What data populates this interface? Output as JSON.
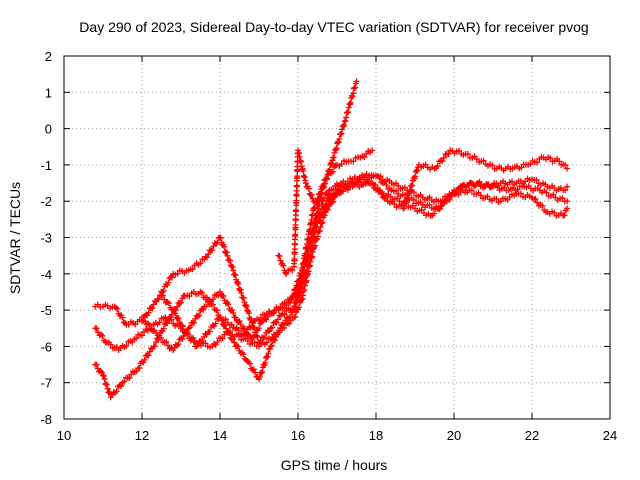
{
  "chart_data": {
    "type": "scatter",
    "title": "Day 290 of 2023, Sidereal Day-to-day VTEC variation (SDTVAR) for receiver pvog",
    "xlabel": "GPS time / hours",
    "ylabel": "SDTVAR / TECUs",
    "xlim": [
      10,
      24
    ],
    "ylim": [
      -8,
      2
    ],
    "xticks": [
      10,
      12,
      14,
      16,
      18,
      20,
      22,
      24
    ],
    "yticks": [
      -8,
      -7,
      -6,
      -5,
      -4,
      -3,
      -2,
      -1,
      0,
      1,
      2
    ],
    "grid": true,
    "marker": "+",
    "color": "#ff0000",
    "series": [
      {
        "x": [
          10.8,
          11.0,
          11.3,
          11.6,
          12.0,
          12.4,
          12.8,
          13.2,
          13.6,
          14.0,
          14.3,
          14.7,
          15.0,
          15.3,
          15.6,
          15.9,
          16.2,
          16.5,
          16.8,
          17.1,
          17.5,
          17.9,
          18.3,
          18.7,
          19.1,
          19.5,
          19.9,
          20.3,
          20.7,
          21.1,
          21.5,
          21.9,
          22.3,
          22.7,
          22.9
        ],
        "y": [
          -4.9,
          -4.9,
          -4.9,
          -5.4,
          -5.3,
          -4.7,
          -4.0,
          -3.9,
          -3.6,
          -3.0,
          -3.8,
          -5.0,
          -5.9,
          -5.5,
          -5.1,
          -4.9,
          -3.6,
          -2.4,
          -1.9,
          -1.6,
          -1.5,
          -1.5,
          -2.0,
          -2.2,
          -1.0,
          -1.1,
          -0.6,
          -0.7,
          -0.9,
          -1.1,
          -1.1,
          -1.0,
          -0.8,
          -0.9,
          -1.1
        ]
      },
      {
        "x": [
          10.8,
          11.0,
          11.2,
          11.5,
          11.9,
          12.3,
          12.7,
          13.1,
          13.5,
          13.9,
          14.3,
          14.7,
          15.0,
          15.3,
          15.6,
          15.9,
          16.2,
          16.5,
          16.8,
          17.1,
          17.4,
          17.8,
          18.2,
          18.6,
          19.0,
          19.4,
          19.8,
          20.2,
          20.6,
          21.0,
          21.4,
          21.8,
          22.2,
          22.6,
          22.9
        ],
        "y": [
          -6.5,
          -6.8,
          -7.4,
          -7.0,
          -6.6,
          -6.0,
          -5.2,
          -4.6,
          -4.5,
          -5.0,
          -5.8,
          -6.4,
          -6.9,
          -6.0,
          -5.4,
          -5.0,
          -4.0,
          -2.6,
          -2.0,
          -1.7,
          -1.6,
          -1.5,
          -1.8,
          -2.0,
          -2.2,
          -2.4,
          -2.0,
          -1.6,
          -1.5,
          -1.6,
          -1.7,
          -1.6,
          -1.7,
          -1.9,
          -2.0
        ]
      },
      {
        "x": [
          10.8,
          11.1,
          11.4,
          11.8,
          12.2,
          12.6,
          13.0,
          13.4,
          13.8,
          14.2,
          14.6,
          15.0,
          15.3,
          15.6,
          15.9,
          16.1,
          16.4,
          16.7,
          17.0,
          17.3,
          17.6,
          18.0,
          18.4,
          18.8,
          19.2,
          19.6,
          20.0,
          20.4,
          20.8,
          21.2,
          21.6,
          22.0,
          22.4,
          22.8,
          22.9
        ],
        "y": [
          -5.5,
          -5.9,
          -6.1,
          -5.8,
          -5.5,
          -5.2,
          -5.5,
          -5.9,
          -6.0,
          -5.6,
          -5.8,
          -6.0,
          -5.8,
          -5.5,
          -5.2,
          -4.7,
          -3.3,
          -2.3,
          -1.8,
          -1.6,
          -1.4,
          -1.3,
          -1.5,
          -1.7,
          -1.9,
          -2.0,
          -1.8,
          -1.7,
          -1.9,
          -2.0,
          -1.8,
          -1.9,
          -2.3,
          -2.4,
          -2.2
        ]
      },
      {
        "x": [
          12.0,
          12.4,
          12.8,
          13.2,
          13.6,
          14.0,
          14.4,
          14.8,
          15.1,
          15.4,
          15.7,
          16.0,
          16.3,
          16.6,
          16.9,
          17.2,
          17.5
        ],
        "y": [
          -5.2,
          -5.7,
          -6.1,
          -5.5,
          -4.9,
          -4.5,
          -5.2,
          -5.8,
          -5.3,
          -5.0,
          -4.8,
          -4.5,
          -3.2,
          -1.8,
          -0.8,
          0.2,
          1.3
        ]
      },
      {
        "x": [
          12.5,
          12.8,
          13.1,
          13.4,
          13.7,
          14.0,
          14.3,
          14.6,
          14.9,
          15.2,
          15.5,
          15.8,
          16.1,
          16.4,
          16.7,
          17.0,
          17.3,
          17.6,
          17.9
        ],
        "y": [
          -4.6,
          -5.0,
          -5.6,
          -6.0,
          -5.6,
          -5.2,
          -5.4,
          -5.7,
          -5.3,
          -5.1,
          -5.0,
          -4.8,
          -3.9,
          -2.2,
          -1.4,
          -1.0,
          -0.9,
          -0.8,
          -0.6
        ]
      },
      {
        "x": [
          15.5,
          15.7,
          15.9,
          16.0,
          16.2,
          16.4,
          16.6,
          16.8,
          17.1,
          17.4,
          17.7,
          18.0,
          18.4,
          18.8,
          19.2,
          19.6,
          20.0,
          20.4,
          20.8,
          21.2,
          21.6,
          22.0,
          22.4,
          22.8,
          22.9
        ],
        "y": [
          -3.5,
          -4.0,
          -3.8,
          -0.6,
          -1.5,
          -2.0,
          -2.0,
          -1.7,
          -1.5,
          -1.4,
          -1.3,
          -1.3,
          -1.7,
          -1.9,
          -2.1,
          -2.2,
          -1.7,
          -1.5,
          -1.6,
          -1.5,
          -1.5,
          -1.4,
          -1.6,
          -1.7,
          -1.6
        ]
      }
    ]
  }
}
